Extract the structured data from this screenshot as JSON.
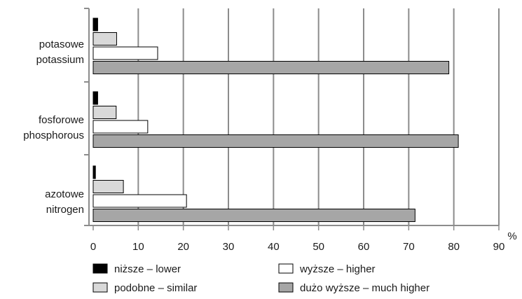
{
  "chart_data": {
    "type": "bar",
    "orientation": "horizontal",
    "categories": [
      [
        "potasowe",
        "potassium"
      ],
      [
        "fosforowe",
        "phosphorous"
      ],
      [
        "azotowe",
        "nitrogen"
      ]
    ],
    "series": [
      {
        "name": "niższe – lower",
        "color": "#000000",
        "values": [
          1,
          1,
          0.5
        ]
      },
      {
        "name": "podobne – similar",
        "color": "#d9d9d9",
        "values": [
          5.2,
          5.1,
          6.7
        ]
      },
      {
        "name": "wyższe – higher",
        "color": "#ffffff",
        "values": [
          14.3,
          12.1,
          20.7
        ]
      },
      {
        "name": "dużo wyższe – much higher",
        "color": "#a6a6a6",
        "values": [
          78.9,
          81.0,
          71.4
        ]
      }
    ],
    "xlim": [
      0,
      90
    ],
    "xticks": [
      0,
      10,
      20,
      30,
      40,
      50,
      60,
      70,
      80,
      90
    ],
    "xunit": "%",
    "grid": true,
    "legend_position": "bottom"
  }
}
